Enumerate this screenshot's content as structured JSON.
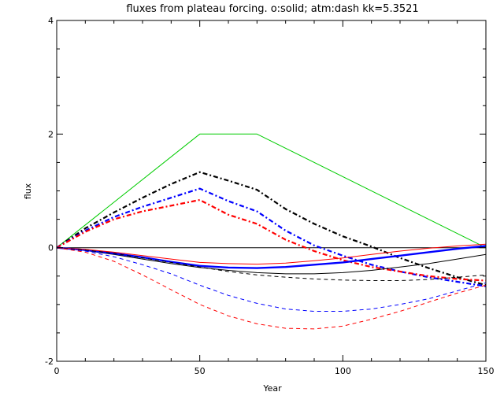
{
  "chart_data": {
    "type": "line",
    "title": "fluxes from plateau forcing. o:solid; atm:dash kk=5.3521",
    "xlabel": "Year",
    "ylabel": "flux",
    "xlim": [
      0,
      150
    ],
    "ylim": [
      -2,
      4
    ],
    "x_ticks": [
      0,
      50,
      100,
      150
    ],
    "y_ticks": [
      -2,
      0,
      2,
      4
    ],
    "x_tick_labels": [
      "0",
      "50",
      "100",
      "150"
    ],
    "y_tick_labels": [
      "-2",
      "0",
      "2",
      "4"
    ],
    "grid": false,
    "series": [
      {
        "color": "#000000",
        "style": "solid",
        "width": 1,
        "x": [
          0,
          150
        ],
        "y": [
          0,
          0
        ]
      },
      {
        "color": "#00cc00",
        "style": "solid",
        "width": 1,
        "x": [
          0,
          50,
          70,
          150
        ],
        "y": [
          0,
          2,
          2,
          0
        ]
      },
      {
        "color": "#000000",
        "style": "dashdot",
        "width": 2.2,
        "x": [
          0,
          10,
          20,
          30,
          40,
          50,
          60,
          70,
          80,
          90,
          100,
          110,
          120,
          130,
          140,
          150
        ],
        "y": [
          0,
          0.34,
          0.62,
          0.88,
          1.12,
          1.33,
          1.18,
          1.02,
          0.68,
          0.42,
          0.2,
          0.02,
          -0.18,
          -0.36,
          -0.52,
          -0.66
        ]
      },
      {
        "color": "#0000ff",
        "style": "dashdot",
        "width": 2.2,
        "x": [
          0,
          10,
          20,
          30,
          40,
          50,
          60,
          70,
          80,
          90,
          100,
          110,
          120,
          130,
          140,
          150
        ],
        "y": [
          0,
          0.3,
          0.54,
          0.72,
          0.88,
          1.04,
          0.82,
          0.64,
          0.3,
          0.04,
          -0.14,
          -0.3,
          -0.42,
          -0.52,
          -0.6,
          -0.68
        ]
      },
      {
        "color": "#ff0000",
        "style": "dashdot",
        "width": 2.2,
        "x": [
          0,
          10,
          20,
          30,
          40,
          50,
          60,
          70,
          80,
          90,
          100,
          110,
          120,
          130,
          140,
          150
        ],
        "y": [
          0,
          0.28,
          0.5,
          0.64,
          0.74,
          0.84,
          0.58,
          0.42,
          0.14,
          -0.06,
          -0.22,
          -0.34,
          -0.42,
          -0.5,
          -0.55,
          -0.58
        ]
      },
      {
        "color": "#000000",
        "style": "solid",
        "width": 1,
        "x": [
          0,
          10,
          20,
          30,
          40,
          50,
          60,
          70,
          80,
          90,
          100,
          110,
          120,
          130,
          140,
          150
        ],
        "y": [
          0,
          -0.05,
          -0.12,
          -0.2,
          -0.28,
          -0.35,
          -0.4,
          -0.44,
          -0.46,
          -0.46,
          -0.44,
          -0.4,
          -0.34,
          -0.28,
          -0.2,
          -0.12
        ]
      },
      {
        "color": "#0000ff",
        "style": "solid",
        "width": 2.4,
        "x": [
          0,
          10,
          20,
          30,
          40,
          50,
          60,
          70,
          80,
          90,
          100,
          110,
          120,
          130,
          140,
          150
        ],
        "y": [
          0,
          -0.04,
          -0.1,
          -0.17,
          -0.25,
          -0.32,
          -0.35,
          -0.36,
          -0.34,
          -0.3,
          -0.26,
          -0.2,
          -0.14,
          -0.08,
          -0.02,
          0.03
        ]
      },
      {
        "color": "#ff0000",
        "style": "solid",
        "width": 1,
        "x": [
          0,
          10,
          20,
          30,
          40,
          50,
          60,
          70,
          80,
          90,
          100,
          110,
          120,
          130,
          140,
          150
        ],
        "y": [
          0,
          -0.03,
          -0.08,
          -0.14,
          -0.2,
          -0.26,
          -0.28,
          -0.29,
          -0.27,
          -0.23,
          -0.18,
          -0.12,
          -0.06,
          -0.01,
          0.03,
          0.06
        ]
      },
      {
        "color": "#000000",
        "style": "dash",
        "width": 1,
        "x": [
          0,
          10,
          20,
          30,
          40,
          50,
          60,
          70,
          80,
          90,
          100,
          110,
          120,
          130,
          140,
          150
        ],
        "y": [
          0,
          -0.04,
          -0.1,
          -0.18,
          -0.26,
          -0.34,
          -0.42,
          -0.48,
          -0.52,
          -0.55,
          -0.57,
          -0.58,
          -0.58,
          -0.56,
          -0.52,
          -0.48
        ]
      },
      {
        "color": "#0000ff",
        "style": "dash",
        "width": 1,
        "x": [
          0,
          10,
          20,
          30,
          40,
          50,
          60,
          70,
          80,
          90,
          100,
          110,
          120,
          130,
          140,
          150
        ],
        "y": [
          0,
          -0.06,
          -0.16,
          -0.3,
          -0.46,
          -0.66,
          -0.84,
          -0.98,
          -1.08,
          -1.12,
          -1.12,
          -1.08,
          -1.0,
          -0.9,
          -0.76,
          -0.62
        ]
      },
      {
        "color": "#ff0000",
        "style": "dash",
        "width": 1,
        "x": [
          0,
          10,
          20,
          30,
          40,
          50,
          60,
          70,
          80,
          90,
          100,
          110,
          120,
          130,
          140,
          150
        ],
        "y": [
          0,
          -0.08,
          -0.24,
          -0.48,
          -0.74,
          -1.0,
          -1.2,
          -1.34,
          -1.42,
          -1.43,
          -1.38,
          -1.26,
          -1.12,
          -0.96,
          -0.8,
          -0.66
        ]
      }
    ]
  }
}
